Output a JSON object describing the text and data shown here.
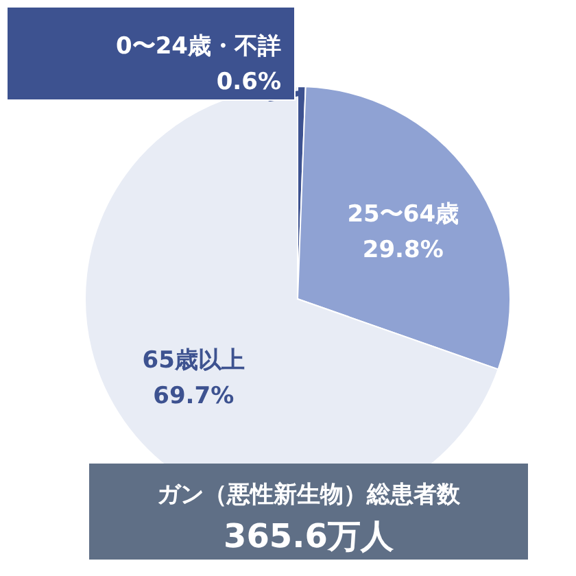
{
  "chart_data": {
    "type": "pie",
    "categories": [
      "0〜24歳・不詳",
      "25〜64歳",
      "65歳以上"
    ],
    "values": [
      0.6,
      29.8,
      69.7
    ],
    "colors": [
      "#3d5290",
      "#8fa2d3",
      "#e8ecf5"
    ],
    "value_labels": [
      "0.6%",
      "29.8%",
      "69.7%"
    ],
    "annotations": [
      "ガン（悪性新生物）総患者数",
      "365.6万人"
    ]
  }
}
